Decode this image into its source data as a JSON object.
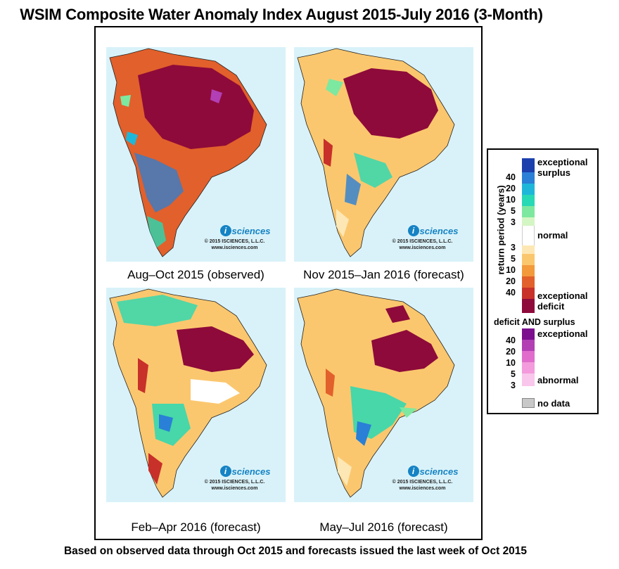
{
  "title": "WSIM Composite Water Anomaly Index August 2015-July 2016 (3-Month)",
  "footer": "Based on observed data through Oct 2015 and forecasts issued the last week of Oct 2015",
  "panels": [
    {
      "caption": "Aug–Oct 2015 (observed)",
      "logo_text": "sciences",
      "logo_letter": "i",
      "copyright": "© 2015 ISCIENCES, L.L.C.",
      "website": "www.isciences.com"
    },
    {
      "caption": "Nov 2015–Jan 2016 (forecast)",
      "logo_text": "sciences",
      "logo_letter": "i",
      "copyright": "© 2015 ISCIENCES, L.L.C.",
      "website": "www.isciences.com"
    },
    {
      "caption": "Feb–Apr 2016 (forecast)",
      "logo_text": "sciences",
      "logo_letter": "i",
      "copyright": "© 2015 ISCIENCES, L.L.C.",
      "website": "www.isciences.com"
    },
    {
      "caption": "May–Jul 2016 (forecast)",
      "logo_text": "sciences",
      "logo_letter": "i",
      "copyright": "© 2015 ISCIENCES, L.L.C.",
      "website": "www.isciences.com"
    }
  ],
  "legend": {
    "axis_label": "return period (years)",
    "exceptional_surplus": "exceptional surplus",
    "normal": "normal",
    "exceptional_deficit": "exceptional deficit",
    "both_header": "deficit AND surplus",
    "both_exceptional": "exceptional",
    "both_abnormal": "abnormal",
    "no_data": "no data",
    "surplus_ticks": [
      "40",
      "20",
      "10",
      "5",
      "3"
    ],
    "deficit_ticks": [
      "3",
      "5",
      "10",
      "20",
      "40"
    ],
    "both_ticks": [
      "40",
      "20",
      "10",
      "5",
      "3"
    ],
    "colors": {
      "surplus": [
        "#1c3fae",
        "#2a7fd6",
        "#1fb7d9",
        "#27d9b4",
        "#7de8a0",
        "#d4f5c4"
      ],
      "normal": "#ffffff",
      "deficit": [
        "#fde7b4",
        "#fbc76e",
        "#f39a3c",
        "#e2602b",
        "#c8302a",
        "#8e0a3a"
      ],
      "both": [
        "#7b0f8e",
        "#b23fb4",
        "#e06dcc",
        "#f39bdc",
        "#f9c6ec"
      ],
      "no_data": "#c8c8c8",
      "water": "#d9f2f9"
    }
  }
}
